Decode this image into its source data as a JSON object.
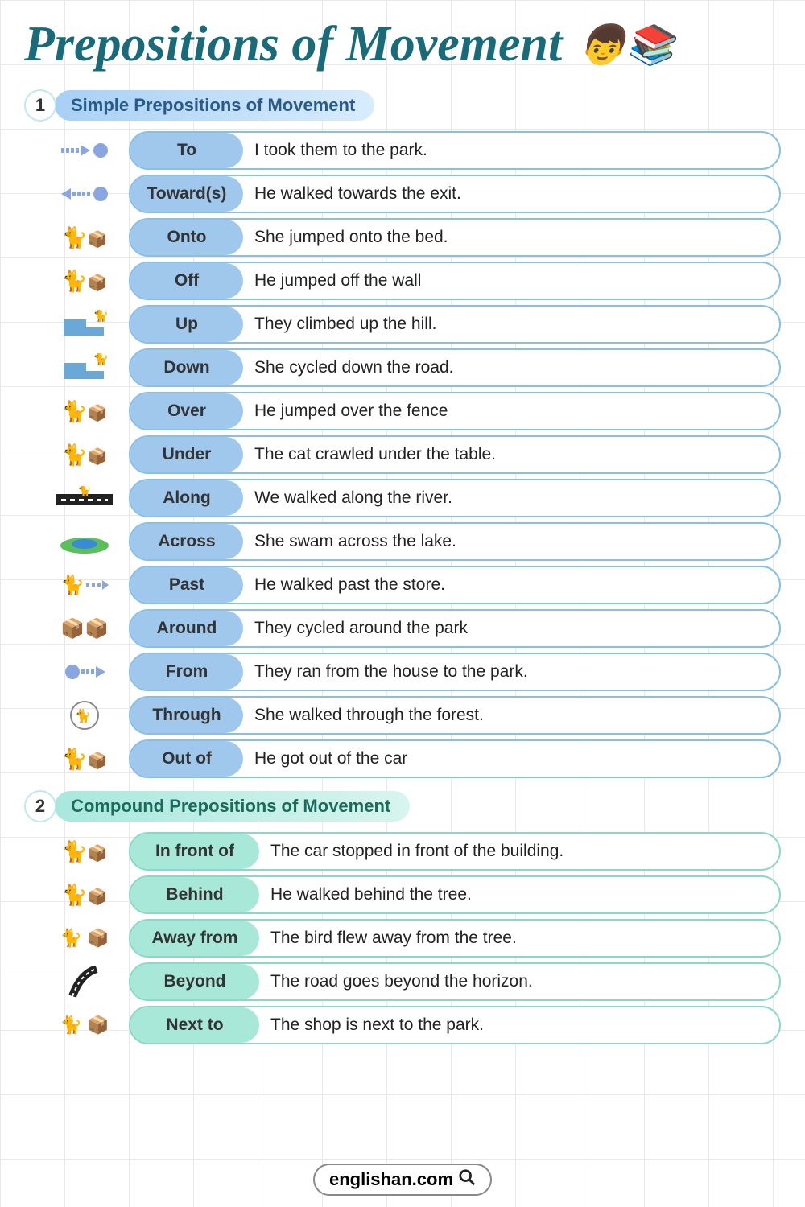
{
  "title": "Prepositions of Movement",
  "sections": [
    {
      "num": "1",
      "label": "Simple Prepositions of Movement",
      "theme": "blue",
      "items": [
        {
          "prep": "To",
          "sentence": "I took them to the park.",
          "icon": "to"
        },
        {
          "prep": "Toward(s)",
          "sentence": "He walked towards the exit.",
          "icon": "toward"
        },
        {
          "prep": "Onto",
          "sentence": "She jumped onto the bed.",
          "icon": "cat-box"
        },
        {
          "prep": "Off",
          "sentence": "He jumped off the wall",
          "icon": "cat-box"
        },
        {
          "prep": "Up",
          "sentence": "They climbed up the hill.",
          "icon": "steps"
        },
        {
          "prep": "Down",
          "sentence": "She cycled down the road.",
          "icon": "steps"
        },
        {
          "prep": "Over",
          "sentence": "He jumped over the fence",
          "icon": "cat-box"
        },
        {
          "prep": "Under",
          "sentence": "The cat crawled under the table.",
          "icon": "cat-box"
        },
        {
          "prep": "Along",
          "sentence": "We walked along the river.",
          "icon": "road"
        },
        {
          "prep": "Across",
          "sentence": "She swam across the lake.",
          "icon": "pond"
        },
        {
          "prep": "Past",
          "sentence": "He walked past the store.",
          "icon": "cat-arrow"
        },
        {
          "prep": "Around",
          "sentence": "They cycled around the park",
          "icon": "boxes"
        },
        {
          "prep": "From",
          "sentence": "They ran from the house to the park.",
          "icon": "from"
        },
        {
          "prep": "Through",
          "sentence": "She walked through the forest.",
          "icon": "circle-cat"
        },
        {
          "prep": "Out of",
          "sentence": "He got out of the car",
          "icon": "cat-box"
        }
      ]
    },
    {
      "num": "2",
      "label": "Compound Prepositions of Movement",
      "theme": "teal",
      "items": [
        {
          "prep": "In front of",
          "sentence": "The car stopped in front of the building.",
          "icon": "cat-box"
        },
        {
          "prep": "Behind",
          "sentence": "He walked behind the tree.",
          "icon": "cat-box"
        },
        {
          "prep": "Away from",
          "sentence": "The bird flew away from the tree.",
          "icon": "cat-and-box"
        },
        {
          "prep": "Beyond",
          "sentence": "The road goes beyond the horizon.",
          "icon": "road-curve"
        },
        {
          "prep": "Next to",
          "sentence": "The shop is next to the park.",
          "icon": "cat-and-box"
        }
      ]
    }
  ],
  "footer": "englishan.com",
  "colors": {
    "title": "#1a6b7a",
    "blue_pill": "#a0c8ed",
    "blue_border": "#86bfe8",
    "teal_pill": "#a8e8d8",
    "teal_border": "#8ad9c8",
    "grid": "#e8e8e8"
  }
}
